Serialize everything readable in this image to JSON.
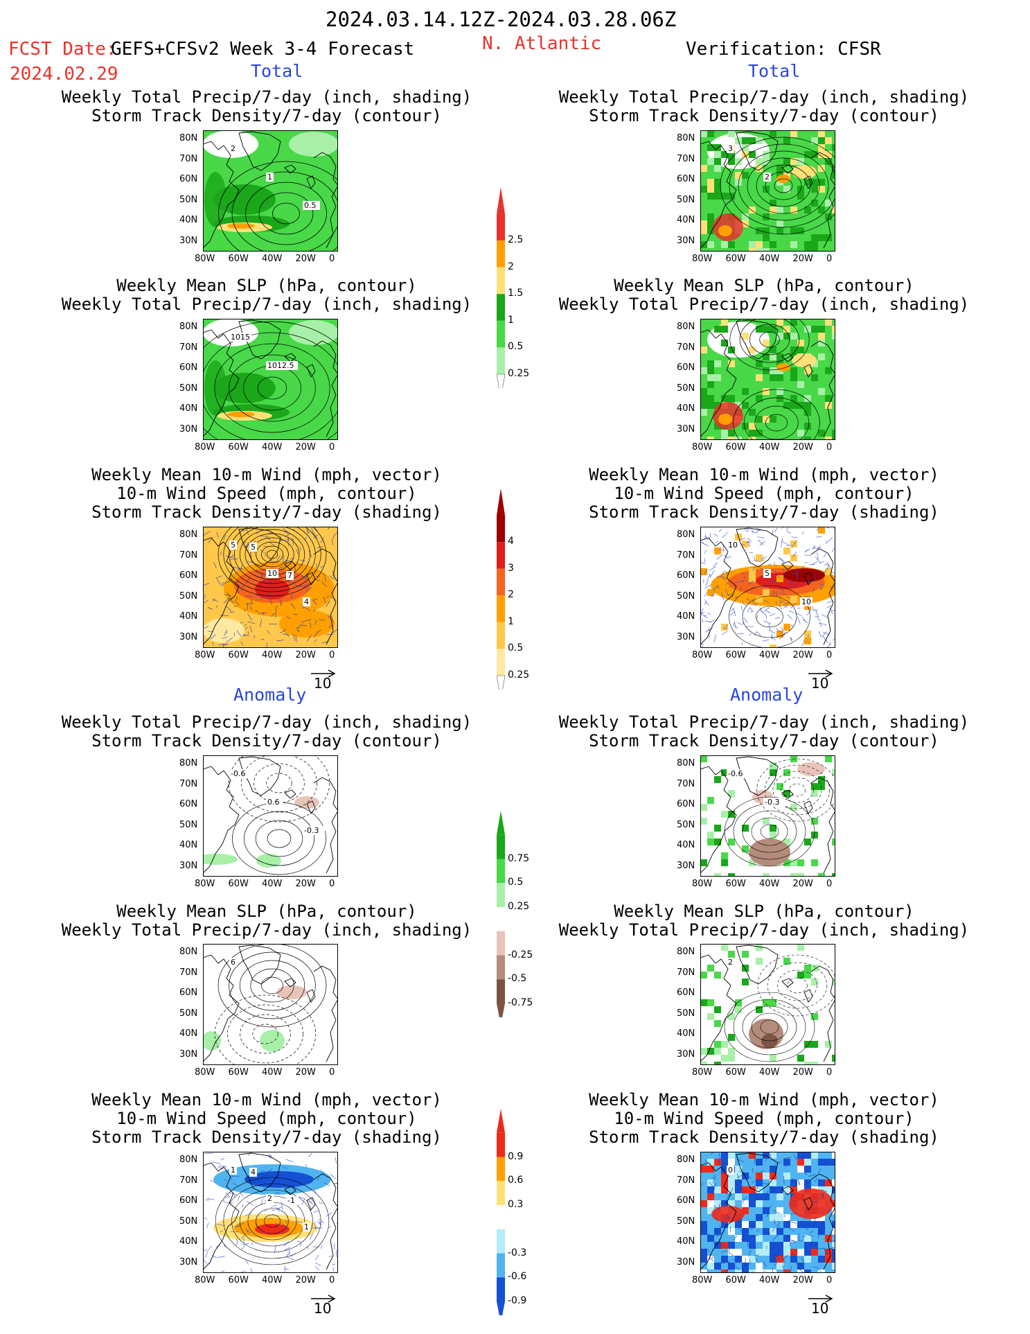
{
  "header": {
    "date_range": "2024.03.14.12Z-2024.03.28.06Z",
    "fcst_date_label": "FCST Date:",
    "model_label": "GEFS+CFSv2 Week 3-4 Forecast",
    "fcst_date": "2024.02.29",
    "region": "N. Atlantic",
    "verification": "Verification: CFSR"
  },
  "sections": {
    "total": "Total",
    "anomaly": "Anomaly"
  },
  "titles": {
    "precip_storm_1": "Weekly Total Precip/7-day (inch, shading)",
    "precip_storm_2": "Storm Track Density/7-day (contour)",
    "slp_precip_1": "Weekly Mean SLP (hPa, contour)",
    "slp_precip_2": "Weekly Total Precip/7-day (inch, shading)",
    "wind_1": "Weekly Mean 10-m Wind (mph, vector)",
    "wind_2": "10-m Wind Speed (mph, contour)",
    "wind_3": "Storm Track Density/7-day (shading)"
  },
  "axes": {
    "lat_ticks": [
      "80N",
      "70N",
      "60N",
      "50N",
      "40N",
      "30N"
    ],
    "lon_ticks": [
      "80W",
      "60W",
      "40W",
      "20W",
      "0"
    ]
  },
  "vector_ref": "10",
  "colorbars": {
    "precip_total": {
      "labels": [
        "2.5",
        "2",
        "1.5",
        "1",
        "0.5",
        "0.25"
      ],
      "colors": [
        "#e8332b",
        "#ffa000",
        "#ffe178",
        "#1aa71a",
        "#48d848",
        "#a8f0a8"
      ]
    },
    "storm_total": {
      "labels": [
        "4",
        "3",
        "2",
        "1",
        "0.5",
        "0.25"
      ],
      "colors": [
        "#9c0000",
        "#e01e1e",
        "#f5641e",
        "#ffa000",
        "#ffc84a",
        "#ffe8a0"
      ]
    },
    "precip_anom": {
      "labels": [
        "0.75",
        "0.5",
        "0.25",
        "-0.25",
        "-0.5",
        "-0.75"
      ],
      "colors": [
        "#1aa71a",
        "#48d848",
        "#a8f0a8",
        "#ffffff",
        "#e8c4b8",
        "#b48c7c",
        "#7c5444"
      ]
    },
    "storm_anom": {
      "labels": [
        "0.9",
        "0.6",
        "0.3",
        "-0.3",
        "-0.6",
        "-0.9"
      ],
      "colors": [
        "#f02a18",
        "#ffa000",
        "#ffe178",
        "#ffffff",
        "#b4ecfa",
        "#50b4f0",
        "#1450d2"
      ]
    }
  },
  "contour_labels": {
    "fc_storm": [
      "2",
      "1",
      "0.5"
    ],
    "fc_slp": [
      "1015",
      "1012.5"
    ],
    "fc_wind": [
      "5",
      "10",
      "4",
      "5",
      "7"
    ],
    "ob_storm": [
      "3",
      "2"
    ],
    "ob_wind": [
      "10",
      "5",
      "10"
    ],
    "fa_storm": [
      "-0.6",
      "0.6",
      "-0.3"
    ],
    "fa_slp": [
      "6"
    ],
    "fa_wind": [
      "1",
      "2",
      "1",
      "4",
      "-1"
    ],
    "oa_storm": [
      "-0.6",
      "-0.3"
    ],
    "oa_slp": [
      "2"
    ],
    "oa_wind": [
      "0"
    ]
  }
}
